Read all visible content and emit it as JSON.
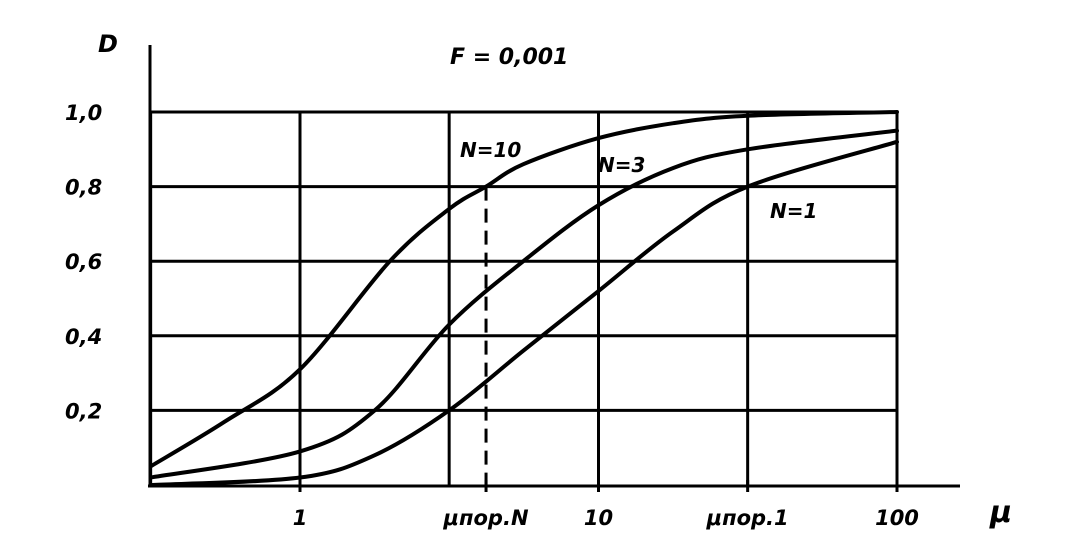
{
  "chart_data": {
    "type": "line",
    "title": "F = 0,001",
    "ylabel": "D",
    "xlabel": "μ",
    "xscale": "log",
    "xlim": [
      0.316,
      100
    ],
    "ylim": [
      0,
      1.0
    ],
    "grid": true,
    "y_ticks": [
      {
        "value": 0.2,
        "label": "0,2"
      },
      {
        "value": 0.4,
        "label": "0,4"
      },
      {
        "value": 0.6,
        "label": "0,6"
      },
      {
        "value": 0.8,
        "label": "0,8"
      },
      {
        "value": 1.0,
        "label": "1,0"
      }
    ],
    "x_grid": [
      0.316,
      1,
      3.16,
      10,
      31.6,
      100
    ],
    "x_ticks": [
      {
        "value": 1,
        "label": "1"
      },
      {
        "value": 4.2,
        "label": "μпор.N"
      },
      {
        "value": 10,
        "label": "10"
      },
      {
        "value": 31.6,
        "label": "μпор.1"
      },
      {
        "value": 100,
        "label": "100"
      }
    ],
    "threshold_marker": {
      "x": 4.2,
      "y": 0.8,
      "style": "dashed"
    },
    "series": [
      {
        "name": "N=10",
        "label": "N=10",
        "x": [
          0.316,
          0.56,
          1,
          2.0,
          3.16,
          4.2,
          5.6,
          10,
          17.8,
          31.6,
          100
        ],
        "values": [
          0.05,
          0.17,
          0.31,
          0.6,
          0.74,
          0.8,
          0.86,
          0.93,
          0.97,
          0.99,
          1.0
        ]
      },
      {
        "name": "N=3",
        "label": "N=3",
        "x": [
          0.316,
          1,
          1.78,
          3.16,
          5.6,
          10,
          17.8,
          31.6,
          100
        ],
        "values": [
          0.02,
          0.09,
          0.2,
          0.43,
          0.6,
          0.75,
          0.85,
          0.9,
          0.95
        ]
      },
      {
        "name": "N=1",
        "label": "N=1",
        "x": [
          0.316,
          1,
          1.78,
          3.16,
          5.6,
          10,
          17.8,
          31.6,
          100
        ],
        "values": [
          0.0,
          0.02,
          0.08,
          0.2,
          0.36,
          0.52,
          0.68,
          0.8,
          0.92
        ]
      }
    ]
  }
}
